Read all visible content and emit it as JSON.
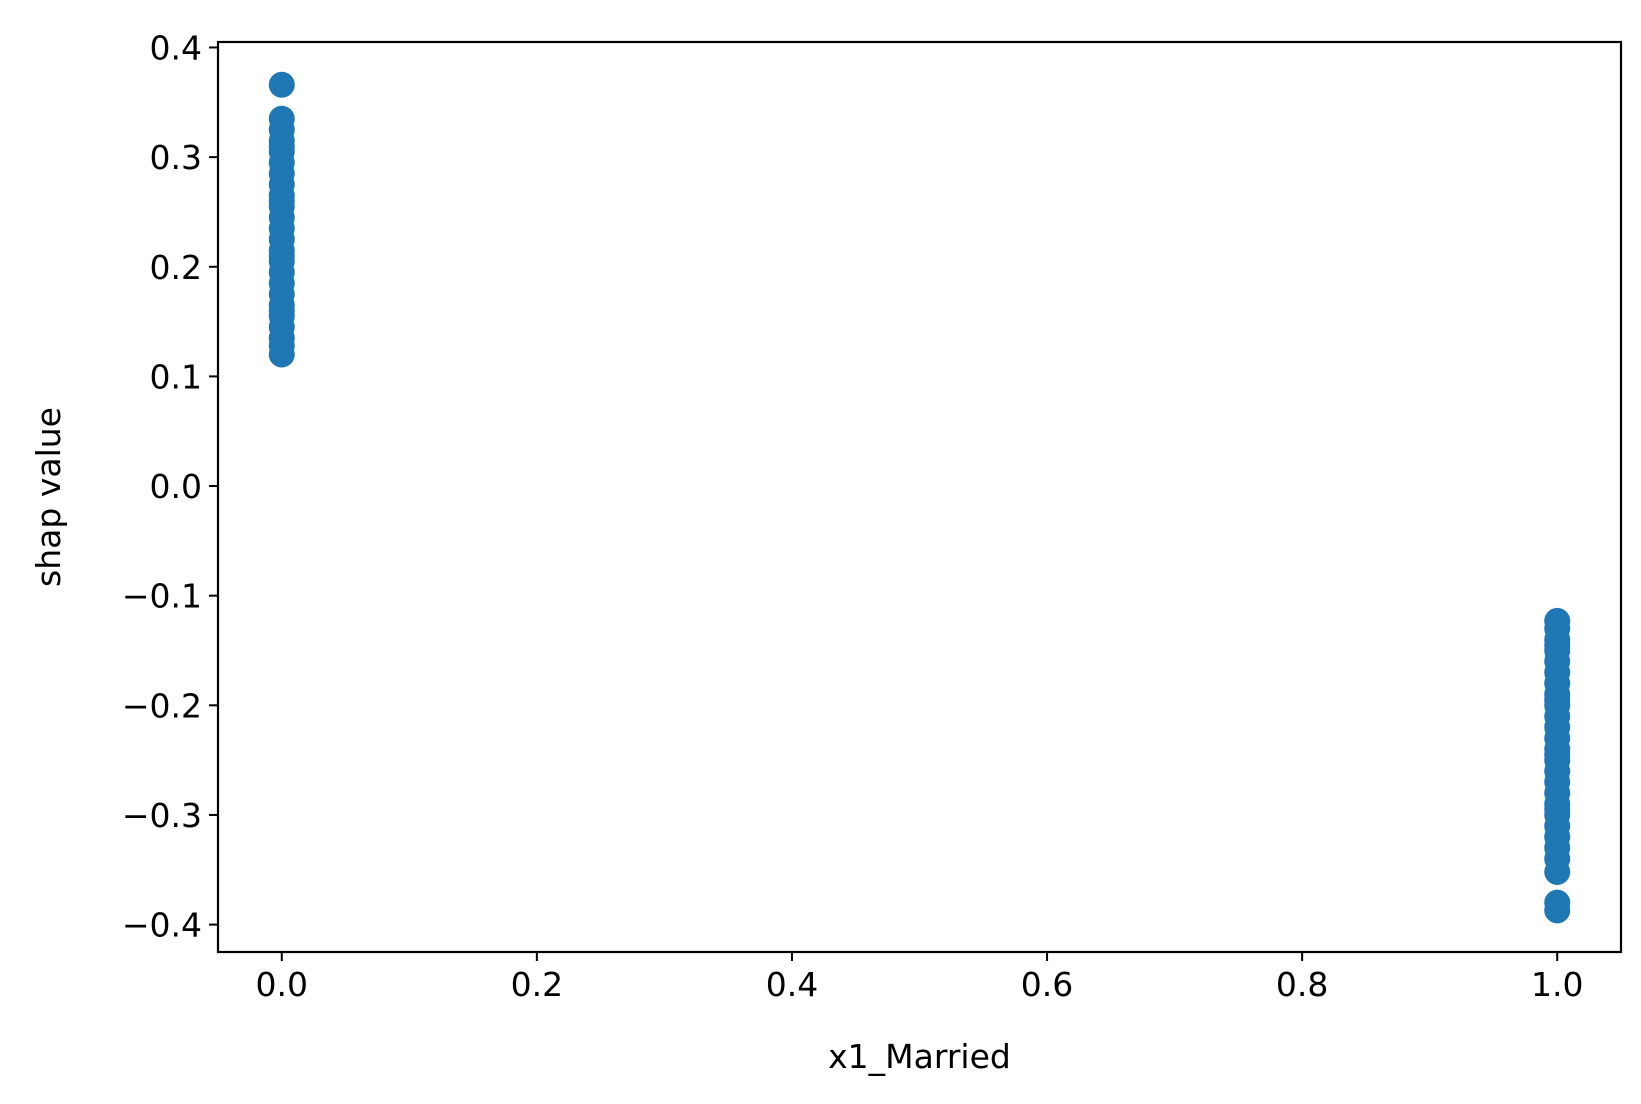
{
  "chart_data": {
    "type": "scatter",
    "title": "",
    "xlabel": "x1_Married",
    "ylabel": "shap value",
    "xlim": [
      -0.05,
      1.05
    ],
    "ylim": [
      -0.425,
      0.405
    ],
    "xticks": [
      0.0,
      0.2,
      0.4,
      0.6,
      0.8,
      1.0
    ],
    "xtick_labels": [
      "0.0",
      "0.2",
      "0.4",
      "0.6",
      "0.8",
      "1.0"
    ],
    "yticks": [
      -0.4,
      -0.3,
      -0.2,
      -0.1,
      0.0,
      0.1,
      0.2,
      0.3,
      0.4
    ],
    "ytick_labels": [
      "−0.4",
      "−0.3",
      "−0.2",
      "−0.1",
      "0.0",
      "0.1",
      "0.2",
      "0.3",
      "0.4"
    ],
    "grid": false,
    "marker_color": "#1f77b4",
    "series": [
      {
        "x": [
          0,
          0,
          0,
          0,
          0,
          0,
          0,
          0,
          0,
          0,
          0,
          0,
          0,
          0,
          0,
          0,
          0,
          0,
          0,
          0,
          0,
          0,
          0,
          0,
          0,
          0,
          0,
          0
        ],
        "y": [
          0.366,
          0.335,
          0.325,
          0.315,
          0.305,
          0.295,
          0.285,
          0.275,
          0.265,
          0.255,
          0.245,
          0.235,
          0.225,
          0.215,
          0.205,
          0.195,
          0.185,
          0.175,
          0.165,
          0.155,
          0.145,
          0.135,
          0.128,
          0.12,
          0.31,
          0.26,
          0.21,
          0.16
        ]
      },
      {
        "x": [
          1,
          1,
          1,
          1,
          1,
          1,
          1,
          1,
          1,
          1,
          1,
          1,
          1,
          1,
          1,
          1,
          1,
          1,
          1,
          1,
          1,
          1,
          1,
          1,
          1,
          1,
          1,
          1,
          1,
          1
        ],
        "y": [
          -0.123,
          -0.13,
          -0.14,
          -0.15,
          -0.16,
          -0.17,
          -0.18,
          -0.19,
          -0.2,
          -0.21,
          -0.22,
          -0.23,
          -0.24,
          -0.25,
          -0.26,
          -0.27,
          -0.28,
          -0.29,
          -0.3,
          -0.31,
          -0.32,
          -0.33,
          -0.34,
          -0.352,
          -0.38,
          -0.387,
          -0.145,
          -0.195,
          -0.245,
          -0.295
        ]
      }
    ]
  }
}
